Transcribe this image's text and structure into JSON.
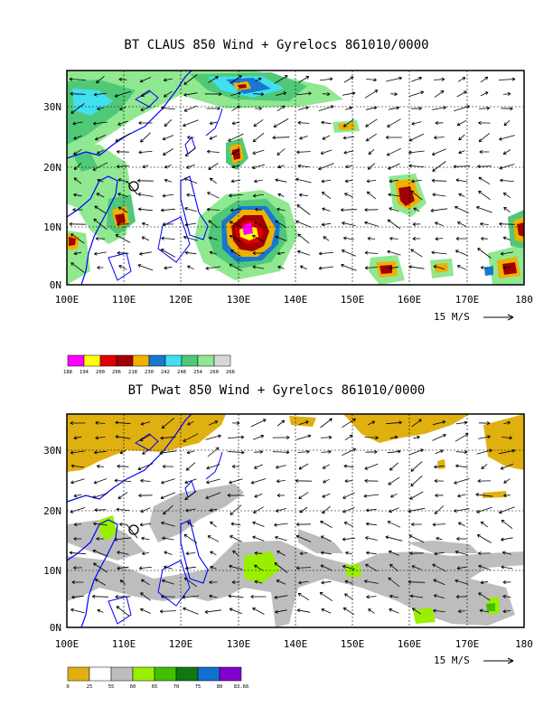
{
  "panels": [
    {
      "title": "BT CLAUS 850 Wind + Gyrelocs 861010/0000",
      "x_ticks": [
        "100E",
        "110E",
        "120E",
        "130E",
        "140E",
        "150E",
        "160E",
        "170E",
        "180"
      ],
      "y_ticks": [
        "0N",
        "10N",
        "20N",
        "30N"
      ],
      "vector_ref": "15 M/S",
      "legend": {
        "colors": [
          "#ff00ff",
          "#ffff00",
          "#e00000",
          "#a00000",
          "#f0b000",
          "#1878d0",
          "#40e0f0",
          "#50c878",
          "#90e890",
          "#d8d8d8"
        ],
        "labels": [
          "188",
          "194",
          "200",
          "206",
          "218",
          "230",
          "242",
          "248",
          "254",
          "260",
          "266"
        ]
      }
    },
    {
      "title": "BT Pwat 850 Wind + Gyrelocs 861010/0000",
      "x_ticks": [
        "100E",
        "110E",
        "120E",
        "130E",
        "140E",
        "150E",
        "160E",
        "170E",
        "180"
      ],
      "y_ticks": [
        "0N",
        "10N",
        "20N",
        "30N"
      ],
      "vector_ref": "15 M/S",
      "legend": {
        "colors": [
          "#e0b010",
          "#ffffff",
          "#bdbdbd",
          "#98f000",
          "#40c000",
          "#107810",
          "#1070d0",
          "#8000d0"
        ],
        "labels": [
          "0",
          "25",
          "55",
          "60",
          "65",
          "70",
          "75",
          "80",
          "83.66"
        ]
      }
    }
  ]
}
